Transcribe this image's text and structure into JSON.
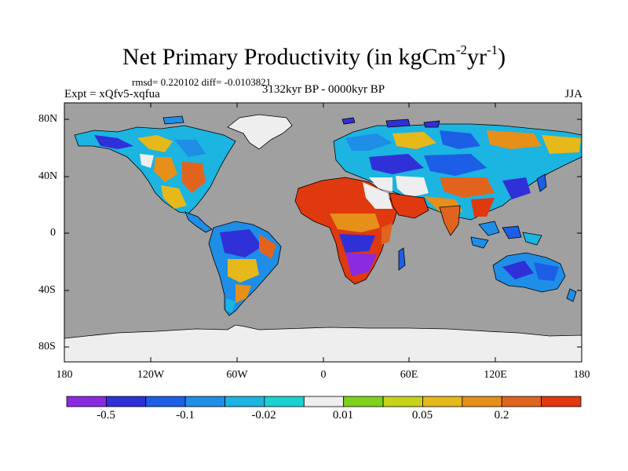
{
  "figure": {
    "title_main": "Net Primary Productivity (in kgCm",
    "title_exp1": "-2",
    "title_mid": "yr",
    "title_exp2": "-1",
    "title_end": ")",
    "stats": "rmsd= 0.220102 diff= -0.0103821",
    "experiment": "Expt = xQfv5-xqfua",
    "period": "3132kyr BP - 0000kyr BP",
    "season": "JJA"
  },
  "axes": {
    "lat_labels": [
      "80N",
      "40N",
      "0",
      "40S",
      "80S"
    ],
    "lon_labels": [
      "180",
      "120W",
      "60W",
      "0",
      "60E",
      "120E",
      "180"
    ]
  },
  "colorbar": {
    "colors": [
      "#8a2be2",
      "#3030d8",
      "#1c5ee6",
      "#1f8ee6",
      "#1cb4e0",
      "#1ad2d2",
      "#eeeeee",
      "#7ed21a",
      "#c8d21a",
      "#e6b81a",
      "#e6901a",
      "#e0641e",
      "#e0380f"
    ],
    "labels": [
      "-0.5",
      "-0.1",
      "-0.02",
      "0.01",
      "0.05",
      "0.2"
    ]
  },
  "map_colors": {
    "ocean": "#a0a0a0",
    "ice": "#eeeeee"
  }
}
